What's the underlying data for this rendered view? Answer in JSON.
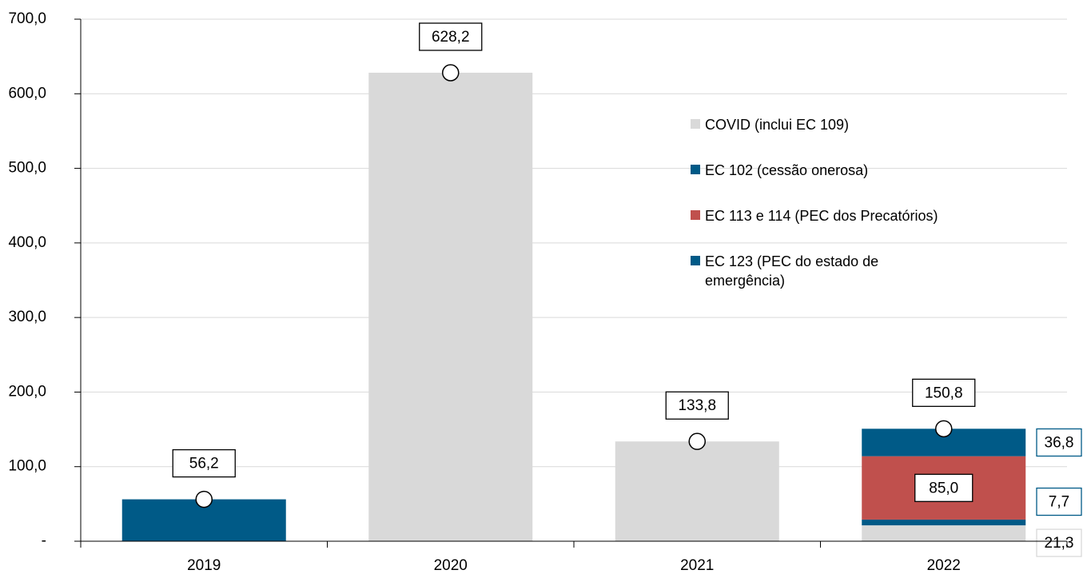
{
  "chart_data": {
    "type": "bar",
    "categories": [
      "2019",
      "2020",
      "2021",
      "2022"
    ],
    "series": [
      {
        "name": "COVID (inclui EC 109)",
        "color": "#d9d9d9",
        "values": [
          null,
          628.2,
          133.8,
          21.3
        ],
        "value_labels": [
          null,
          null,
          null,
          "21,3"
        ]
      },
      {
        "name": "EC 102 (cessão onerosa)",
        "color": "#005a87",
        "values": [
          56.2,
          null,
          null,
          7.7
        ],
        "value_labels": [
          null,
          null,
          null,
          "7,7"
        ]
      },
      {
        "name": "EC 113 e 114 (PEC dos Precatórios)",
        "color": "#c0504d",
        "values": [
          null,
          null,
          null,
          85.0
        ],
        "value_labels": [
          null,
          null,
          null,
          "85,0"
        ]
      },
      {
        "name": "EC 123 (PEC do estado de emergência)",
        "color": "#005a87",
        "values": [
          null,
          null,
          null,
          36.8
        ],
        "value_labels": [
          null,
          null,
          null,
          "36,8"
        ]
      }
    ],
    "totals": {
      "values": [
        56.2,
        628.2,
        133.8,
        150.8
      ],
      "value_labels": [
        "56,2",
        "628,2",
        "133,8",
        "150,8"
      ]
    },
    "ylim": [
      0,
      700
    ],
    "yticks": [
      {
        "value": 0,
        "label": "-"
      },
      {
        "value": 100,
        "label": "100,0"
      },
      {
        "value": 200,
        "label": "200,0"
      },
      {
        "value": 300,
        "label": "300,0"
      },
      {
        "value": 400,
        "label": "400,0"
      },
      {
        "value": 500,
        "label": "500,0"
      },
      {
        "value": 600,
        "label": "600,0"
      },
      {
        "value": 700,
        "label": "700,0"
      }
    ],
    "grid": true
  }
}
